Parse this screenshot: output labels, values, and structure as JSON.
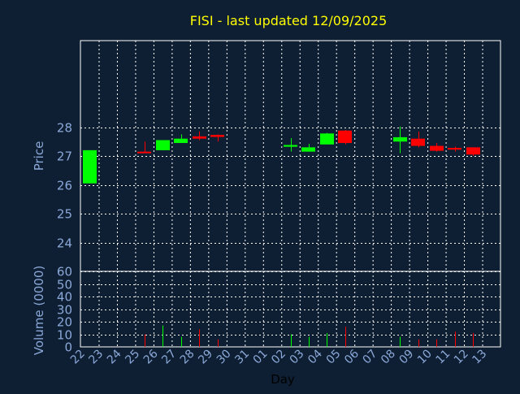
{
  "chart_data": {
    "type": "candlestick",
    "title": "FISI - last updated 12/09/2025",
    "xlabel": "Day",
    "price_panel": {
      "ylabel": "Price",
      "yticks": [
        "24",
        "25",
        "26",
        "27",
        "28"
      ],
      "ylim": [
        23,
        31
      ]
    },
    "volume_panel": {
      "ylabel": "Volume (0000)",
      "yticks": [
        "0",
        "10",
        "20",
        "30",
        "40",
        "50",
        "60"
      ],
      "ylim": [
        0,
        60
      ]
    },
    "x_tick_labels": [
      "22",
      "23",
      "24",
      "25",
      "26",
      "27",
      "28",
      "29",
      "30",
      "31",
      "01",
      "02",
      "03",
      "04",
      "05",
      "06",
      "07",
      "08",
      "09",
      "10",
      "11",
      "12",
      "13"
    ],
    "candles": [
      {
        "day": "22",
        "open": 26.05,
        "close": 27.2,
        "high": 27.2,
        "low": 26.05,
        "volume": 0
      },
      {
        "day": "25",
        "open": 27.15,
        "close": 27.1,
        "high": 27.5,
        "low": 27.1,
        "volume": 10
      },
      {
        "day": "26",
        "open": 27.2,
        "close": 27.55,
        "high": 27.55,
        "low": 27.2,
        "volume": 17
      },
      {
        "day": "27",
        "open": 27.45,
        "close": 27.6,
        "high": 27.75,
        "low": 27.45,
        "volume": 8
      },
      {
        "day": "28",
        "open": 27.68,
        "close": 27.6,
        "high": 27.85,
        "low": 27.55,
        "volume": 14
      },
      {
        "day": "29",
        "open": 27.73,
        "close": 27.66,
        "high": 27.75,
        "low": 27.5,
        "volume": 6
      },
      {
        "day": "02",
        "open": 27.32,
        "close": 27.38,
        "high": 27.62,
        "low": 27.15,
        "volume": 10
      },
      {
        "day": "03",
        "open": 27.15,
        "close": 27.3,
        "high": 27.42,
        "low": 27.15,
        "volume": 8
      },
      {
        "day": "04",
        "open": 27.4,
        "close": 27.78,
        "high": 27.8,
        "low": 27.4,
        "volume": 11
      },
      {
        "day": "05",
        "open": 27.88,
        "close": 27.45,
        "high": 27.9,
        "low": 27.4,
        "volume": 16
      },
      {
        "day": "08",
        "open": 27.5,
        "close": 27.65,
        "high": 28.02,
        "low": 27.1,
        "volume": 8
      },
      {
        "day": "09",
        "open": 27.6,
        "close": 27.35,
        "high": 27.85,
        "low": 27.3,
        "volume": 6
      },
      {
        "day": "10",
        "open": 27.35,
        "close": 27.18,
        "high": 27.45,
        "low": 27.15,
        "volume": 6
      },
      {
        "day": "11",
        "open": 27.28,
        "close": 27.22,
        "high": 27.32,
        "low": 27.15,
        "volume": 12
      },
      {
        "day": "12",
        "open": 27.3,
        "close": 27.05,
        "high": 27.3,
        "low": 27.0,
        "volume": 11
      }
    ],
    "colors": {
      "background": "#0f1f33",
      "grid": "#ffffff",
      "up": "#00ff00",
      "down": "#ff0000",
      "title": "#ffff00",
      "axis_text": "#8aa8d8"
    },
    "grid": true,
    "legend": "none"
  }
}
